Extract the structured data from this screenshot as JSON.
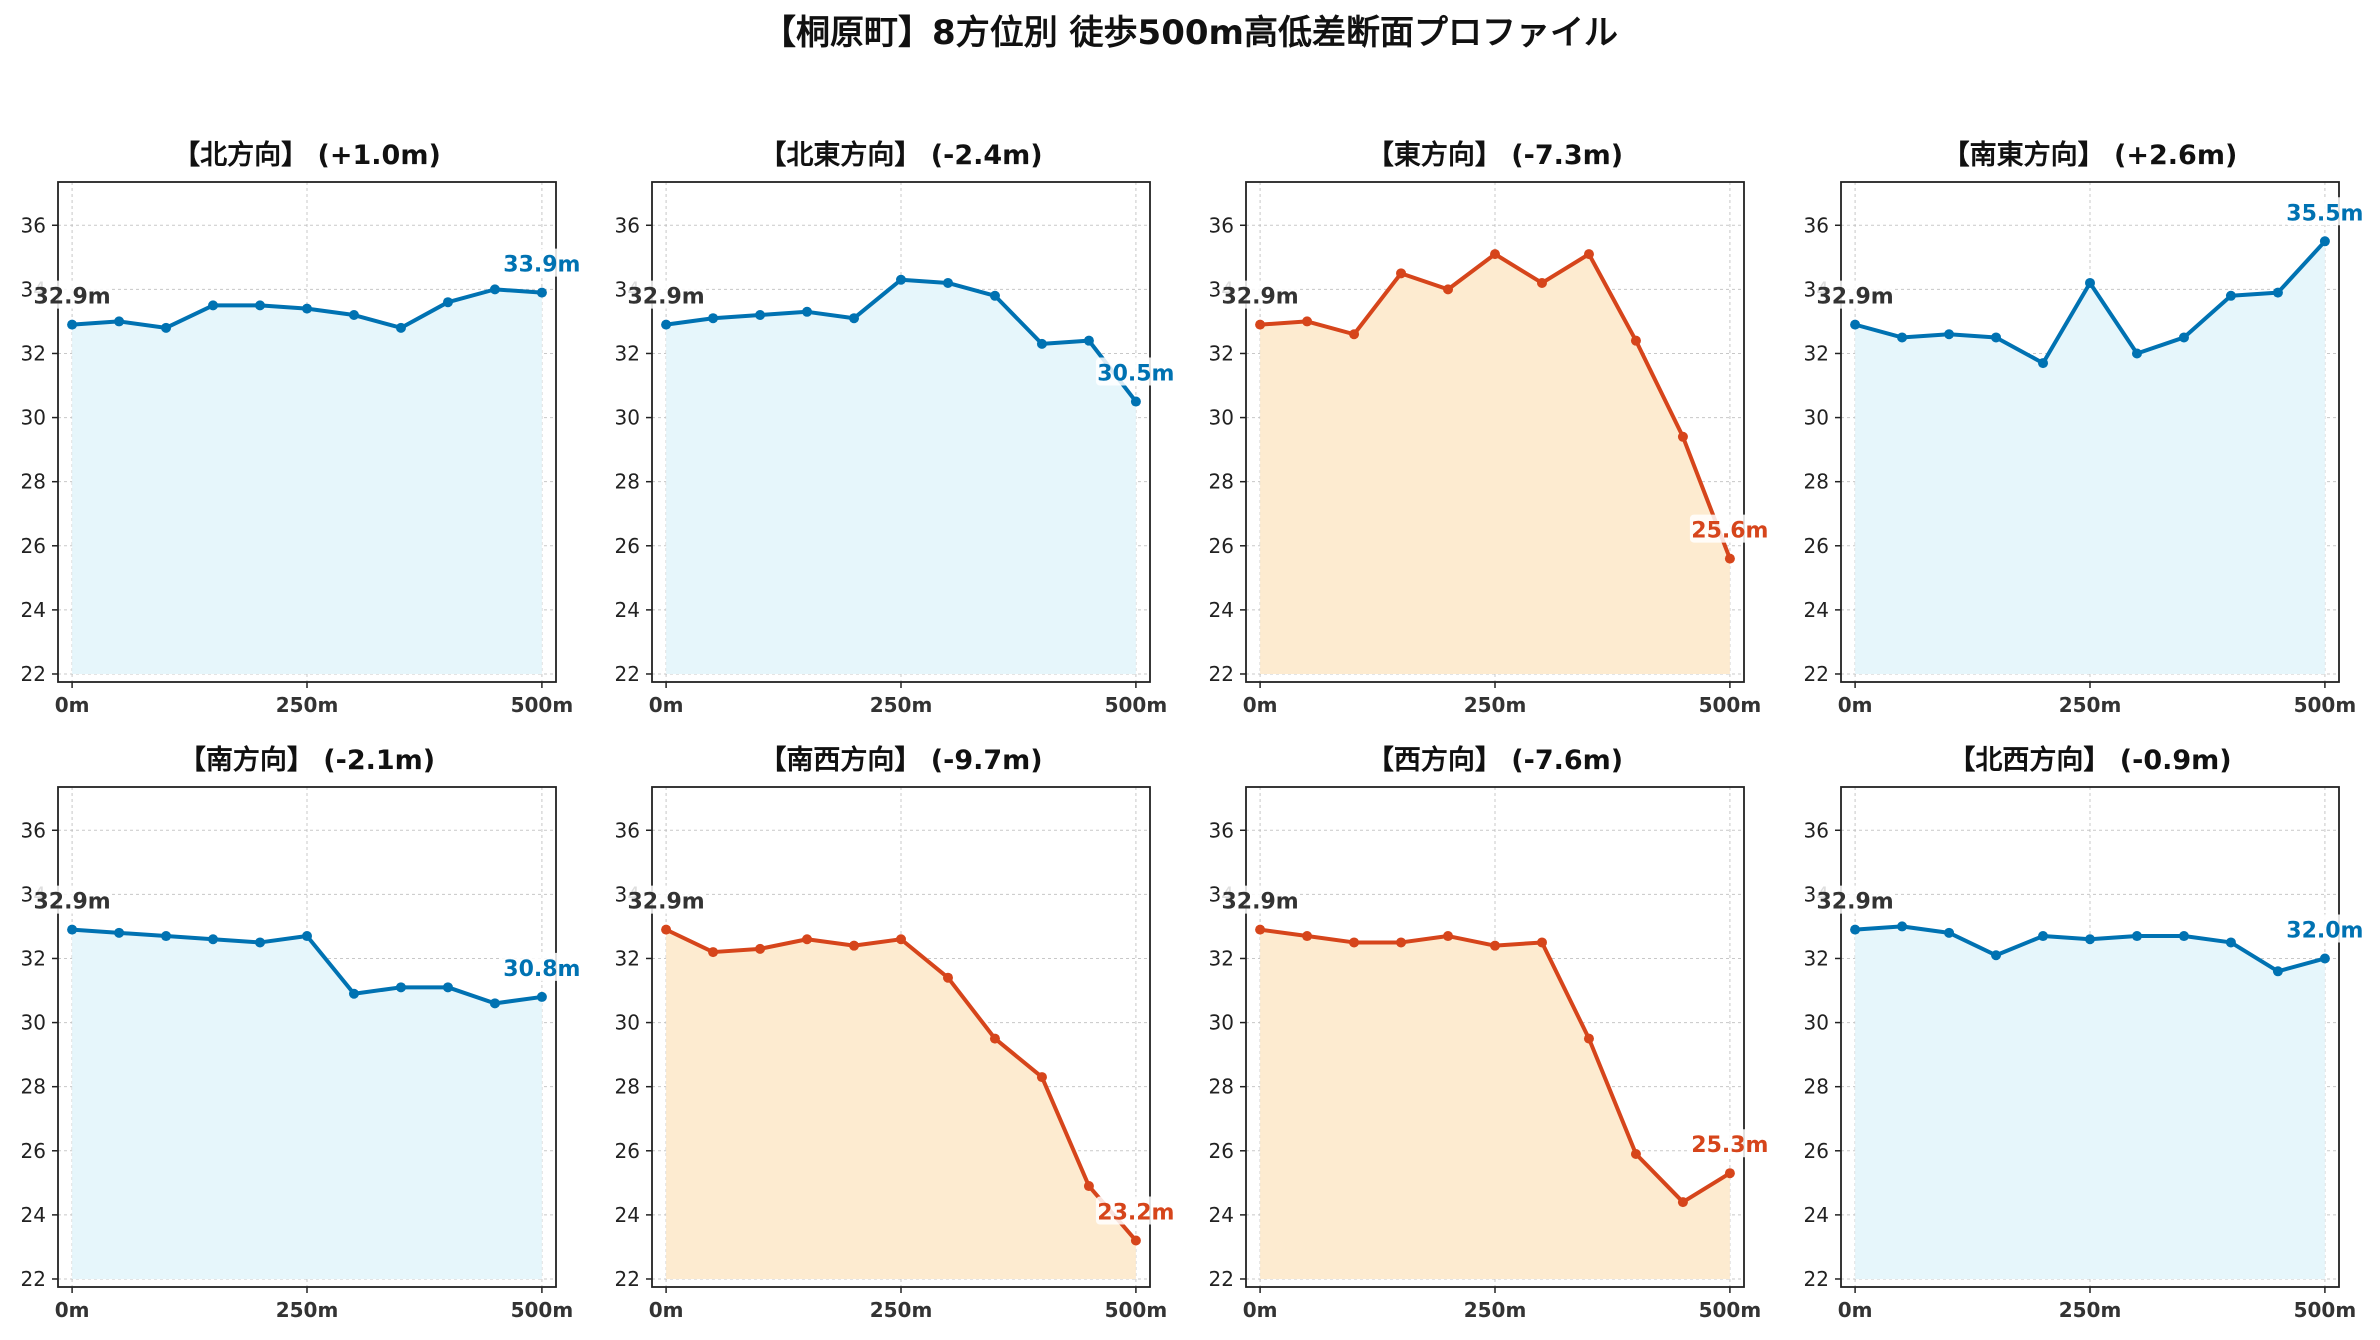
{
  "title": "【桐原町】8方位別 徒歩500m高低差断面プロファイル",
  "colors": {
    "up_line": "#0072b2",
    "up_fill": "#e6f6fb",
    "down_line": "#d6451b",
    "down_fill": "#fdebd0",
    "start_label": "#333333",
    "grid": "#bbbbbb"
  },
  "chart_data": [
    {
      "type": "area",
      "title": "【北方向】 (+1.0m)",
      "trend": "up",
      "x": [
        0,
        50,
        100,
        150,
        200,
        250,
        300,
        350,
        400,
        450,
        500
      ],
      "y": [
        32.9,
        33.0,
        32.8,
        33.5,
        33.5,
        33.4,
        33.2,
        32.8,
        33.6,
        34.0,
        33.9
      ],
      "start_label": "32.9m",
      "end_label": "33.9m",
      "xticks": [
        "0m",
        "250m",
        "500m"
      ],
      "yticks": [
        22,
        24,
        26,
        28,
        30,
        32,
        34,
        36
      ],
      "xlim": [
        0,
        500
      ],
      "ylim": [
        22,
        37
      ],
      "grid": true
    },
    {
      "type": "area",
      "title": "【北東方向】 (-2.4m)",
      "trend": "up",
      "x": [
        0,
        50,
        100,
        150,
        200,
        250,
        300,
        350,
        400,
        450,
        500
      ],
      "y": [
        32.9,
        33.1,
        33.2,
        33.3,
        33.1,
        34.3,
        34.2,
        33.8,
        32.3,
        32.4,
        30.5
      ],
      "start_label": "32.9m",
      "end_label": "30.5m",
      "xticks": [
        "0m",
        "250m",
        "500m"
      ],
      "yticks": [
        22,
        24,
        26,
        28,
        30,
        32,
        34,
        36
      ],
      "xlim": [
        0,
        500
      ],
      "ylim": [
        22,
        37
      ],
      "grid": true
    },
    {
      "type": "area",
      "title": "【東方向】 (-7.3m)",
      "trend": "down",
      "x": [
        0,
        50,
        100,
        150,
        200,
        250,
        300,
        350,
        400,
        450,
        500
      ],
      "y": [
        32.9,
        33.0,
        32.6,
        34.5,
        34.0,
        35.1,
        34.2,
        35.1,
        32.4,
        29.4,
        25.6
      ],
      "start_label": "32.9m",
      "end_label": "25.6m",
      "xticks": [
        "0m",
        "250m",
        "500m"
      ],
      "yticks": [
        22,
        24,
        26,
        28,
        30,
        32,
        34,
        36
      ],
      "xlim": [
        0,
        500
      ],
      "ylim": [
        22,
        37
      ],
      "grid": true
    },
    {
      "type": "area",
      "title": "【南東方向】 (+2.6m)",
      "trend": "up",
      "x": [
        0,
        50,
        100,
        150,
        200,
        250,
        300,
        350,
        400,
        450,
        500
      ],
      "y": [
        32.9,
        32.5,
        32.6,
        32.5,
        31.7,
        34.2,
        32.0,
        32.5,
        33.8,
        33.9,
        35.5
      ],
      "start_label": "32.9m",
      "end_label": "35.5m",
      "xticks": [
        "0m",
        "250m",
        "500m"
      ],
      "yticks": [
        22,
        24,
        26,
        28,
        30,
        32,
        34,
        36
      ],
      "xlim": [
        0,
        500
      ],
      "ylim": [
        22,
        37
      ],
      "grid": true
    },
    {
      "type": "area",
      "title": "【南方向】 (-2.1m)",
      "trend": "up",
      "x": [
        0,
        50,
        100,
        150,
        200,
        250,
        300,
        350,
        400,
        450,
        500
      ],
      "y": [
        32.9,
        32.8,
        32.7,
        32.6,
        32.5,
        32.7,
        30.9,
        31.1,
        31.1,
        30.6,
        30.8
      ],
      "start_label": "32.9m",
      "end_label": "30.8m",
      "xticks": [
        "0m",
        "250m",
        "500m"
      ],
      "yticks": [
        22,
        24,
        26,
        28,
        30,
        32,
        34,
        36
      ],
      "xlim": [
        0,
        500
      ],
      "ylim": [
        22,
        37
      ],
      "grid": true
    },
    {
      "type": "area",
      "title": "【南西方向】 (-9.7m)",
      "trend": "down",
      "x": [
        0,
        50,
        100,
        150,
        200,
        250,
        300,
        350,
        400,
        450,
        500
      ],
      "y": [
        32.9,
        32.2,
        32.3,
        32.6,
        32.4,
        32.6,
        31.4,
        29.5,
        28.3,
        24.9,
        23.2
      ],
      "start_label": "32.9m",
      "end_label": "23.2m",
      "xticks": [
        "0m",
        "250m",
        "500m"
      ],
      "yticks": [
        22,
        24,
        26,
        28,
        30,
        32,
        34,
        36
      ],
      "xlim": [
        0,
        500
      ],
      "ylim": [
        22,
        37
      ],
      "grid": true
    },
    {
      "type": "area",
      "title": "【西方向】 (-7.6m)",
      "trend": "down",
      "x": [
        0,
        50,
        100,
        150,
        200,
        250,
        300,
        350,
        400,
        450,
        500
      ],
      "y": [
        32.9,
        32.7,
        32.5,
        32.5,
        32.7,
        32.4,
        32.5,
        29.5,
        25.9,
        24.4,
        25.3
      ],
      "start_label": "32.9m",
      "end_label": "25.3m",
      "xticks": [
        "0m",
        "250m",
        "500m"
      ],
      "yticks": [
        22,
        24,
        26,
        28,
        30,
        32,
        34,
        36
      ],
      "xlim": [
        0,
        500
      ],
      "ylim": [
        22,
        37
      ],
      "grid": true
    },
    {
      "type": "area",
      "title": "【北西方向】 (-0.9m)",
      "trend": "up",
      "x": [
        0,
        50,
        100,
        150,
        200,
        250,
        300,
        350,
        400,
        450,
        500
      ],
      "y": [
        32.9,
        33.0,
        32.8,
        32.1,
        32.7,
        32.6,
        32.7,
        32.7,
        32.5,
        31.6,
        32.0
      ],
      "start_label": "32.9m",
      "end_label": "32.0m",
      "xticks": [
        "0m",
        "250m",
        "500m"
      ],
      "yticks": [
        22,
        24,
        26,
        28,
        30,
        32,
        34,
        36
      ],
      "xlim": [
        0,
        500
      ],
      "ylim": [
        22,
        37
      ],
      "grid": true
    }
  ]
}
